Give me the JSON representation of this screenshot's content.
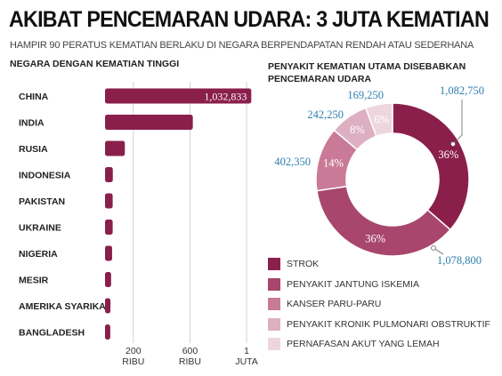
{
  "title": "AKIBAT PENCEMARAN UDARA: 3 JUTA KEMATIAN",
  "subtitle": "HAMPIR 90 PERATUS KEMATIAN BERLAKU DI NEGARA BERPENDAPATAN RENDAH ATAU SEDERHANA",
  "colors": {
    "bar": "#8a1f4c",
    "slices": [
      "#8a1f4c",
      "#a8466e",
      "#c97a96",
      "#ddb0c1",
      "#eed6df"
    ],
    "value_label": "#2e7fb0"
  },
  "chart_data": [
    {
      "type": "bar",
      "orientation": "horizontal",
      "title": "NEGARA DENGAN KEMATIAN TINGGI",
      "categories": [
        "CHINA",
        "INDIA",
        "RUSIA",
        "INDONESIA",
        "PAKISTAN",
        "UKRAINE",
        "NIGERIA",
        "MESIR",
        "AMERIKA SYARIKAT",
        "BANGLADESH"
      ],
      "values": [
        1032833,
        620000,
        140000,
        55000,
        54000,
        54000,
        50000,
        43000,
        38000,
        37000
      ],
      "data_labels": [
        "1,032,833",
        "",
        "",
        "",
        "",
        "",
        "",
        "",
        "",
        ""
      ],
      "xlim": [
        0,
        1100000
      ],
      "xticks": [
        {
          "value": 200000,
          "line1": "200",
          "line2": "RIBU"
        },
        {
          "value": 600000,
          "line1": "600",
          "line2": "RIBU"
        },
        {
          "value": 1000000,
          "line1": "1",
          "line2": "JUTA"
        }
      ],
      "grid": true
    },
    {
      "type": "pie",
      "donut": true,
      "title": "PENYAKIT KEMATIAN UTAMA DISEBABKAN PENCEMARAN UDARA",
      "slices": [
        {
          "name": "STROK",
          "value": 1082750,
          "value_label": "1,082,750",
          "percent_label": "36%"
        },
        {
          "name": "PENYAKIT JANTUNG ISKEMIA",
          "value": 1078800,
          "value_label": "1,078,800",
          "percent_label": "36%"
        },
        {
          "name": "KANSER PARU-PARU",
          "value": 402350,
          "value_label": "402,350",
          "percent_label": "14%"
        },
        {
          "name": "PENYAKIT KRONIK PULMONARI OBSTRUKTIF",
          "value": 242250,
          "value_label": "242,250",
          "percent_label": "8%"
        },
        {
          "name": "PERNAFASAN AKUT YANG LEMAH",
          "value": 169250,
          "value_label": "169,250",
          "percent_label": "6%"
        }
      ],
      "legend": "bottom-left"
    }
  ]
}
